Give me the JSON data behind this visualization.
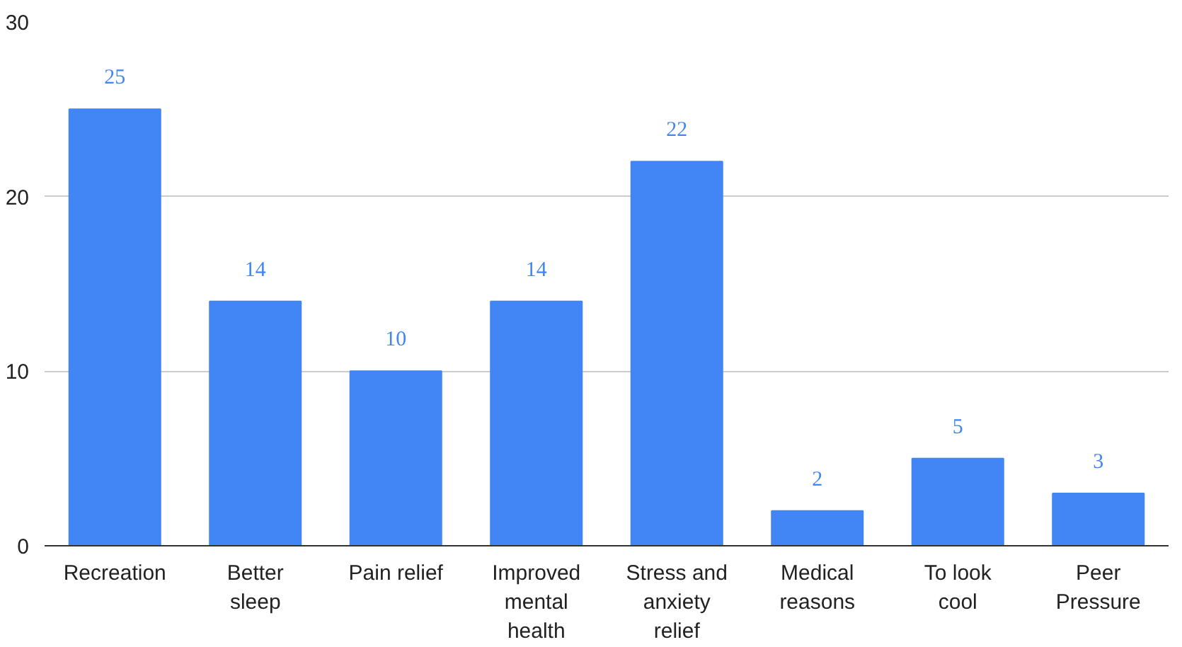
{
  "chart_data": {
    "type": "bar",
    "categories": [
      "Recreation",
      "Better sleep",
      "Pain relief",
      "Improved mental health",
      "Stress and anxiety relief",
      "Medical reasons",
      "To look cool",
      "Peer Pressure"
    ],
    "values": [
      25,
      14,
      10,
      14,
      22,
      2,
      5,
      3
    ],
    "color": "#4285f4",
    "ylim": [
      0,
      30
    ],
    "yticks": [
      0,
      10,
      20,
      30
    ],
    "grid": "y",
    "data_labels": true
  }
}
